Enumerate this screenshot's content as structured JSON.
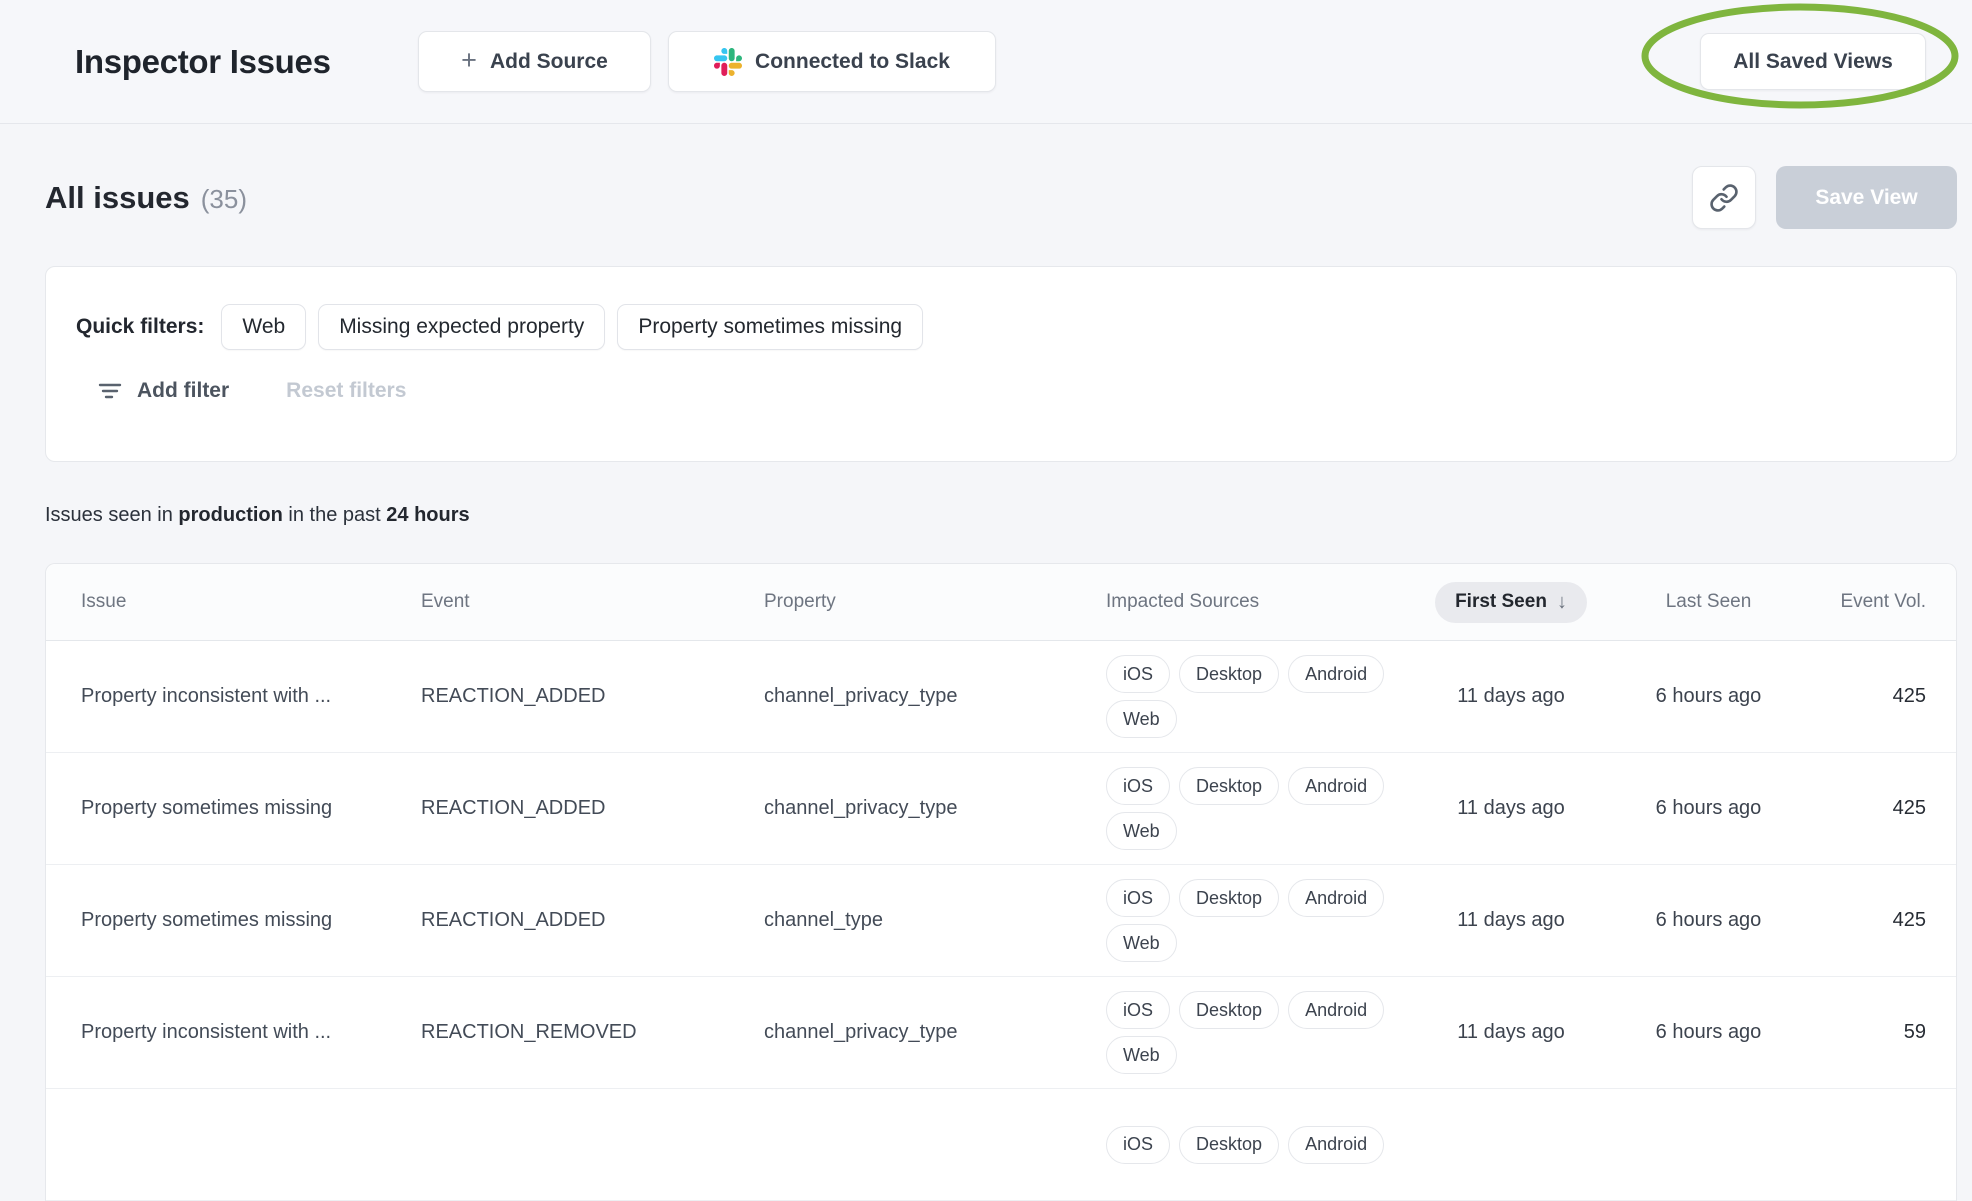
{
  "header": {
    "title": "Inspector Issues",
    "add_source_label": "Add Source",
    "connected_slack_label": "Connected to Slack",
    "all_saved_views_label": "All Saved Views"
  },
  "toolbar": {
    "heading": "All issues",
    "count": "(35)",
    "save_view_label": "Save View"
  },
  "filters": {
    "label": "Quick filters:",
    "chips": [
      "Web",
      "Missing expected property",
      "Property sometimes missing"
    ],
    "add_filter_label": "Add filter",
    "reset_filters_label": "Reset filters"
  },
  "summary": {
    "prefix": "Issues seen in ",
    "environment": "production",
    "middle": " in the past ",
    "timeframe": "24 hours"
  },
  "table": {
    "columns": [
      "Issue",
      "Event",
      "Property",
      "Impacted Sources",
      "First Seen",
      "Last Seen",
      "Event Vol."
    ],
    "sorted_column": "First Seen",
    "rows": [
      {
        "issue": "Property inconsistent with ...",
        "event": "REACTION_ADDED",
        "property": "channel_privacy_type",
        "sources": [
          [
            "iOS",
            "Desktop",
            "Android"
          ],
          [
            "Web"
          ]
        ],
        "first_seen": "11 days ago",
        "last_seen": "6 hours ago",
        "event_vol": "425"
      },
      {
        "issue": "Property sometimes missing",
        "event": "REACTION_ADDED",
        "property": "channel_privacy_type",
        "sources": [
          [
            "iOS",
            "Desktop",
            "Android"
          ],
          [
            "Web"
          ]
        ],
        "first_seen": "11 days ago",
        "last_seen": "6 hours ago",
        "event_vol": "425"
      },
      {
        "issue": "Property sometimes missing",
        "event": "REACTION_ADDED",
        "property": "channel_type",
        "sources": [
          [
            "iOS",
            "Desktop",
            "Android"
          ],
          [
            "Web"
          ]
        ],
        "first_seen": "11 days ago",
        "last_seen": "6 hours ago",
        "event_vol": "425"
      },
      {
        "issue": "Property inconsistent with ...",
        "event": "REACTION_REMOVED",
        "property": "channel_privacy_type",
        "sources": [
          [
            "iOS",
            "Desktop",
            "Android"
          ],
          [
            "Web"
          ]
        ],
        "first_seen": "11 days ago",
        "last_seen": "6 hours ago",
        "event_vol": "59"
      },
      {
        "issue": "",
        "event": "",
        "property": "",
        "sources": [
          [
            "iOS",
            "Desktop",
            "Android"
          ]
        ],
        "first_seen": "",
        "last_seen": "",
        "event_vol": ""
      }
    ]
  },
  "icons": {
    "plus": "+",
    "sort_desc": "↓"
  },
  "colors": {
    "annotation_green": "#7fb53e",
    "slack_blue": "#36C5F0",
    "slack_green": "#2EB67D",
    "slack_yellow": "#ECB22E",
    "slack_red": "#E01E5A",
    "save_view_disabled_bg": "#c9cfd8"
  }
}
